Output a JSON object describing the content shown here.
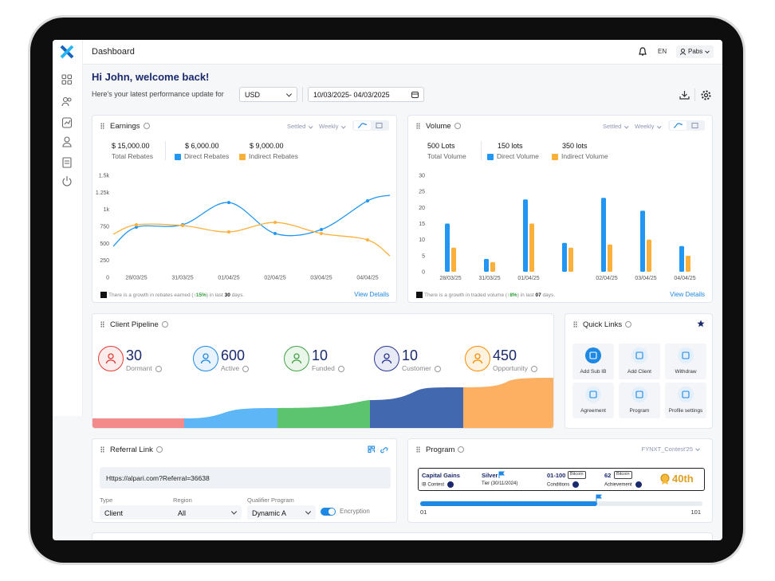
{
  "header": {
    "title": "Dashboard",
    "language": "EN",
    "user": "Pabs"
  },
  "welcome": {
    "greeting": "Hi John, welcome back!",
    "subtitle": "Here's your latest performance update for",
    "currency": "USD",
    "date_range": "10/03/2025- 04/03/2025"
  },
  "chart_data": [
    {
      "type": "line",
      "title": "Earnings",
      "filters": [
        "Settled",
        "Weekly"
      ],
      "total": {
        "value": "$ 15,000.00",
        "label": "Total Rebates"
      },
      "categories": [
        null,
        "28/03/25",
        "31/03/25",
        "01/04/25",
        "02/04/25",
        "03/04/25",
        "04/04/25",
        null
      ],
      "series": [
        {
          "name": "Direct Rebates",
          "total": "$ 6,000.00",
          "color": "#2196f3",
          "values": [
            457,
            738,
            773,
            1100,
            645,
            703,
            1125,
            1207
          ]
        },
        {
          "name": "Indirect Rebates",
          "total": "$ 9,000.00",
          "color": "#fbb03b",
          "values": [
            633,
            773,
            762,
            668,
            808,
            645,
            551,
            316
          ]
        }
      ],
      "ylim": [
        0,
        1500
      ],
      "yticks": [
        0,
        250,
        500,
        750,
        {
          "value": 1000,
          "label": "1k"
        },
        {
          "value": 1250,
          "label": "1.25k"
        },
        {
          "value": 1500,
          "label": "1.5k"
        }
      ],
      "note": {
        "before": "There is a growth in rebates earned (",
        "highlight": "↑15%",
        "middle": ") in last ",
        "days": "30",
        "after": " days."
      },
      "link": "View Details"
    },
    {
      "type": "bar",
      "title": "Volume",
      "filters": [
        "Settled",
        "Weekly"
      ],
      "total": {
        "value": "500 Lots",
        "label": "Total Volume"
      },
      "categories": [
        "28/03/25",
        "31/03/25",
        "01/04/25",
        null,
        "02/04/25",
        "03/04/25",
        "04/04/25"
      ],
      "series": [
        {
          "name": "Direct Volume",
          "total": "150 lots",
          "color": "#2196f3",
          "values": [
            15,
            4,
            22.5,
            9,
            23,
            19,
            8
          ]
        },
        {
          "name": "Indirect Volume",
          "total": "350 lots",
          "color": "#fbb03b",
          "values": [
            7.5,
            3,
            15,
            7.5,
            8.5,
            10,
            5
          ]
        }
      ],
      "ylim": [
        0,
        30
      ],
      "yticks": [
        0,
        5,
        10,
        15,
        20,
        25,
        30
      ],
      "note": {
        "before": "There is a growth in traded volume (",
        "highlight": "↑8%",
        "middle": ") in last ",
        "days": "07",
        "after": " days."
      },
      "link": "View Details"
    }
  ],
  "pipeline": {
    "title": "Client Pipeline",
    "items": [
      {
        "value": 30,
        "label": "Dormant"
      },
      {
        "value": 600,
        "label": "Active"
      },
      {
        "value": 10,
        "label": "Funded"
      },
      {
        "value": 10,
        "label": "Customer"
      },
      {
        "value": 450,
        "label": "Opportunity"
      }
    ]
  },
  "quick_links": {
    "title": "Quick Links",
    "items": [
      "Add Sub IB",
      "Add Client",
      "Withdraw",
      "Agreement",
      "Program",
      "Profile settings"
    ]
  },
  "referral": {
    "title": "Referral Link",
    "url": "Https://alpari.com?Referral=36638",
    "fields": [
      {
        "label": "Type",
        "value": "Client"
      },
      {
        "label": "Region",
        "value": "All"
      },
      {
        "label": "Qualifier Program",
        "value": "Dynamic A"
      }
    ],
    "toggle": "Encryption"
  },
  "program": {
    "title": "Program",
    "selector": "FYNXT_Contest'25",
    "contest": "Capital Gains",
    "contest_sub": "IB Contest",
    "tier": "Silver",
    "tier_sub": "Tier (30/11/2024)",
    "conditions": "01-100",
    "conditions_chip": "Bitcoin",
    "conditions_sub": "Conditions",
    "achievement": "62",
    "achievement_chip": "Bitcoin",
    "achievement_sub": "Achievement",
    "rank": "40th",
    "progress_start": "01",
    "progress_end": "101"
  }
}
